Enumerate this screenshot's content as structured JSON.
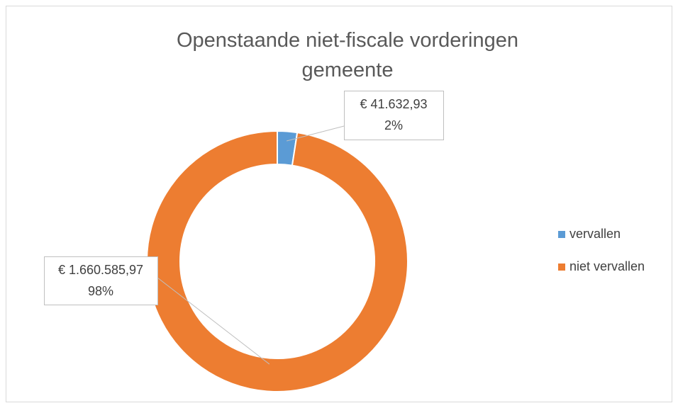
{
  "chart_data": {
    "type": "donut",
    "title": "Openstaande niet-fiscale vorderingen gemeente",
    "categories": [
      "vervallen",
      "niet vervallen"
    ],
    "values": [
      41632.93,
      1660585.97
    ],
    "value_labels": [
      "€ 41.632,93",
      "€ 1.660.585,97"
    ],
    "percents": [
      2,
      98
    ],
    "percent_labels": [
      "2%",
      "98%"
    ],
    "colors": [
      "#5b9bd5",
      "#ed7d31"
    ],
    "legend": "right"
  }
}
